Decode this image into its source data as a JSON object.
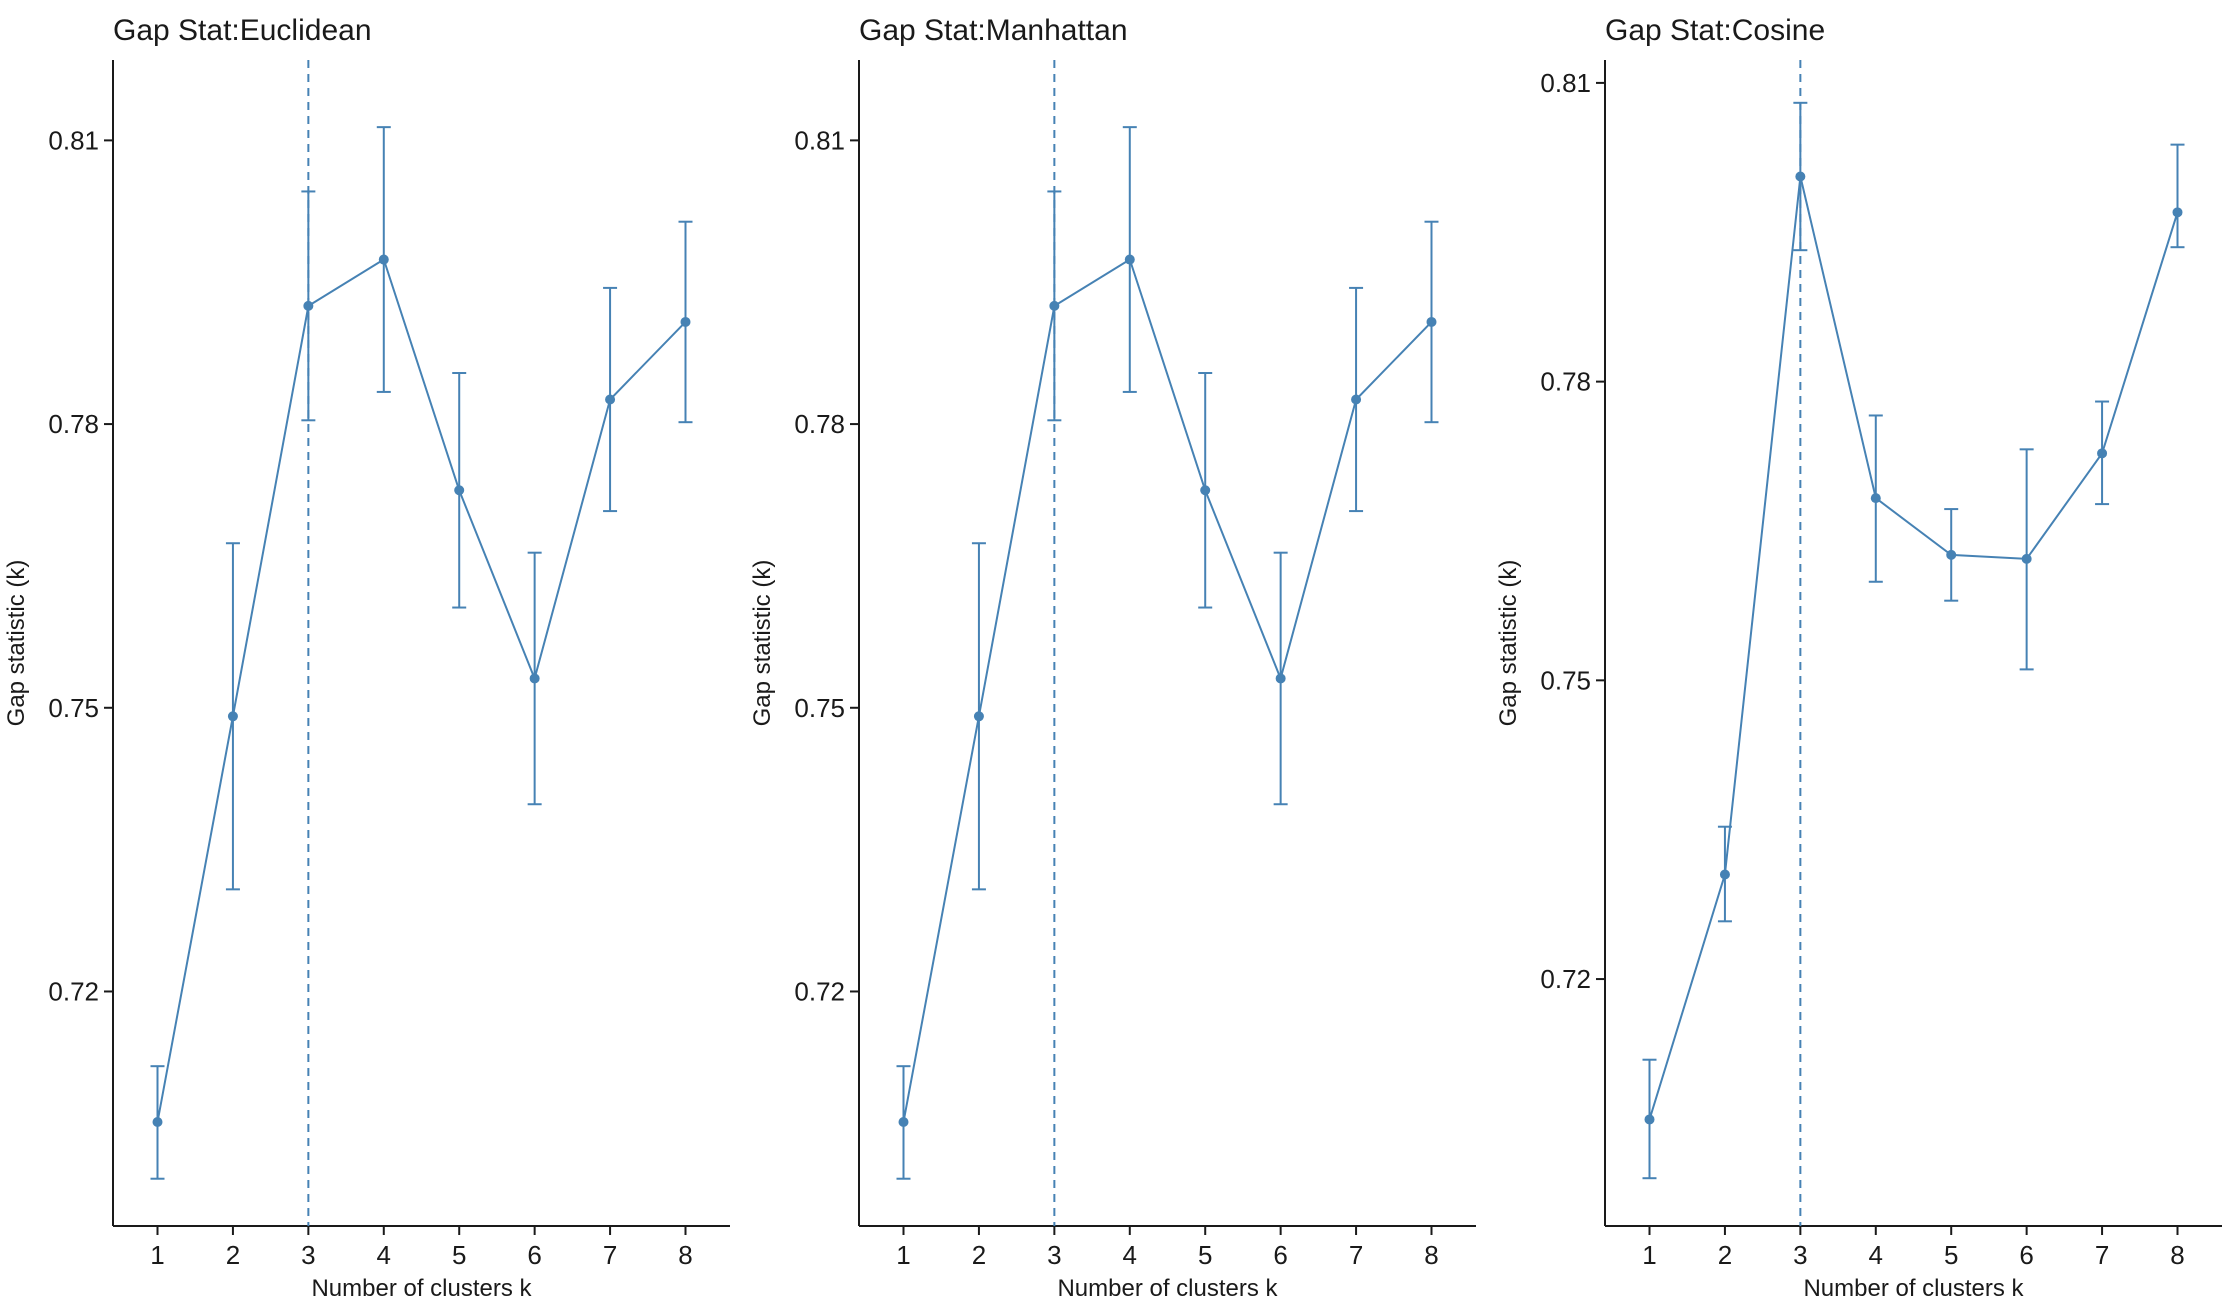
{
  "colors": {
    "series": "#4682B4",
    "axis": "#1a1a1a",
    "background": "#ffffff"
  },
  "chart_data": [
    {
      "type": "line",
      "title": "Gap Stat:Euclidean",
      "xlabel": "Number of clusters k",
      "ylabel": "Gap statistic (k)",
      "x": [
        1,
        2,
        3,
        4,
        5,
        6,
        7,
        8
      ],
      "xticks": [
        "1",
        "2",
        "3",
        "4",
        "5",
        "6",
        "7",
        "8"
      ],
      "y": [
        0.7062,
        0.7491,
        0.7925,
        0.7974,
        0.773,
        0.7531,
        0.7826,
        0.7908
      ],
      "y_lower": [
        0.7002,
        0.7308,
        0.7804,
        0.7834,
        0.7606,
        0.7398,
        0.7708,
        0.7802
      ],
      "y_upper": [
        0.7121,
        0.7674,
        0.8046,
        0.8114,
        0.7854,
        0.7664,
        0.7944,
        0.8014
      ],
      "optimal_k": 3,
      "yticks": [
        "0.72",
        "0.75",
        "0.78",
        "0.81"
      ],
      "ytick_values": [
        0.72,
        0.75,
        0.78,
        0.81
      ],
      "ylim": [
        0.6952,
        0.8185
      ],
      "xlim": [
        0.41,
        8.59
      ],
      "grid": false,
      "legend": "none"
    },
    {
      "type": "line",
      "title": "Gap Stat:Manhattan",
      "xlabel": "Number of clusters k",
      "ylabel": "Gap statistic (k)",
      "x": [
        1,
        2,
        3,
        4,
        5,
        6,
        7,
        8
      ],
      "xticks": [
        "1",
        "2",
        "3",
        "4",
        "5",
        "6",
        "7",
        "8"
      ],
      "y": [
        0.7062,
        0.7491,
        0.7925,
        0.7974,
        0.773,
        0.7531,
        0.7826,
        0.7908
      ],
      "y_lower": [
        0.7002,
        0.7308,
        0.7804,
        0.7834,
        0.7606,
        0.7398,
        0.7708,
        0.7802
      ],
      "y_upper": [
        0.7121,
        0.7674,
        0.8046,
        0.8114,
        0.7854,
        0.7664,
        0.7944,
        0.8014
      ],
      "optimal_k": 3,
      "yticks": [
        "0.72",
        "0.75",
        "0.78",
        "0.81"
      ],
      "ytick_values": [
        0.72,
        0.75,
        0.78,
        0.81
      ],
      "ylim": [
        0.6952,
        0.8185
      ],
      "xlim": [
        0.41,
        8.59
      ],
      "grid": false,
      "legend": "none"
    },
    {
      "type": "line",
      "title": "Gap Stat:Cosine",
      "xlabel": "Number of clusters k",
      "ylabel": "Gap statistic (k)",
      "x": [
        1,
        2,
        3,
        4,
        5,
        6,
        7,
        8
      ],
      "xticks": [
        "1",
        "2",
        "3",
        "4",
        "5",
        "6",
        "7",
        "8"
      ],
      "y": [
        0.7059,
        0.7305,
        0.8006,
        0.7683,
        0.7626,
        0.7622,
        0.7728,
        0.797
      ],
      "y_lower": [
        0.7,
        0.7258,
        0.7932,
        0.7599,
        0.758,
        0.7511,
        0.7677,
        0.7935
      ],
      "y_upper": [
        0.7119,
        0.7353,
        0.808,
        0.7766,
        0.7672,
        0.7732,
        0.778,
        0.8038
      ],
      "optimal_k": 3,
      "yticks": [
        "0.72",
        "0.75",
        "0.78",
        "0.81"
      ],
      "ytick_values": [
        0.72,
        0.75,
        0.78,
        0.81
      ],
      "ylim": [
        0.6952,
        0.8123
      ],
      "xlim": [
        0.41,
        8.59
      ],
      "grid": false,
      "legend": "none"
    }
  ]
}
